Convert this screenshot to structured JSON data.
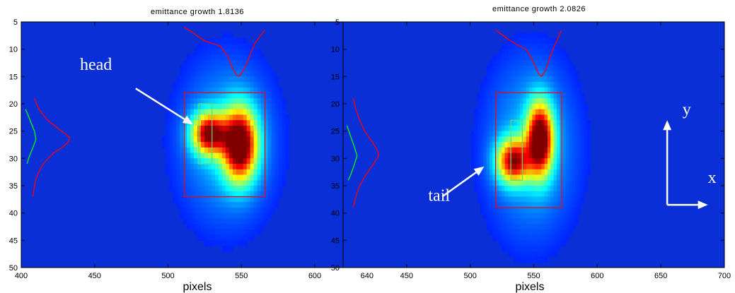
{
  "chart_data": [
    {
      "type": "heatmap",
      "title": "emittance growth 1.8136",
      "xlabel": "pixels",
      "ylabel": "",
      "xlim": [
        400,
        640
      ],
      "ylim": [
        50,
        5
      ],
      "xticks": [
        400,
        450,
        500,
        550,
        600,
        640
      ],
      "yticks": [
        5,
        10,
        15,
        20,
        25,
        30,
        35,
        40,
        45,
        50
      ],
      "colormap": "jet",
      "background_color": "#0a2fd6",
      "beam": {
        "main": {
          "x": 549,
          "y": 27.5,
          "sx": 8,
          "sy": 4.5,
          "amp": 1.0
        },
        "lobe": {
          "x": 528,
          "y": 25.5,
          "sx": 8,
          "sy": 2.6,
          "amp": 0.85
        },
        "halo": {
          "x": 540,
          "y": 27,
          "sx": 24,
          "sy": 11,
          "amp": 0.22
        }
      },
      "roi_box": {
        "x0": 511,
        "x1": 566,
        "y0": 18,
        "y1": 37,
        "color": "#ff0000"
      },
      "inner_box": {
        "x0": 521,
        "x1": 530,
        "y0": 20,
        "y1": 31,
        "color": "#66dd66"
      },
      "x_profile": {
        "color": "#ff0000",
        "x": [
          511,
          516,
          521,
          526,
          531,
          536,
          541,
          544,
          546,
          548,
          550,
          553,
          556,
          559,
          563,
          566
        ],
        "y": [
          6,
          6.8,
          7.8,
          8.6,
          9.0,
          9.5,
          11.5,
          13.5,
          14.5,
          15.0,
          14.5,
          13.0,
          11.0,
          9.0,
          7.5,
          6.5
        ]
      },
      "y_profiles": [
        {
          "color": "#ff0000",
          "y": [
            19,
            21,
            23,
            24.5,
            25.5,
            26.2,
            27,
            28,
            29,
            31,
            33,
            35,
            37
          ],
          "x": [
            409,
            412,
            418,
            425,
            430,
            433,
            432,
            428,
            422,
            415,
            411,
            409,
            408
          ]
        },
        {
          "color": "#00ff00",
          "y": [
            21,
            23,
            25,
            26.5,
            28,
            30,
            31
          ],
          "x": [
            403,
            406,
            409,
            410,
            408,
            405,
            404
          ]
        }
      ],
      "annotations": [
        {
          "text": "head",
          "tx": 440,
          "ty": 13.8,
          "ax1": 478,
          "ay1": 17.2,
          "ax2": 517,
          "ay2": 23.8
        }
      ]
    },
    {
      "type": "heatmap",
      "title": "emittance growth 2.0826",
      "xlabel": "pixels",
      "ylabel": "",
      "xlim": [
        400,
        700
      ],
      "ylim": [
        50,
        5
      ],
      "xticks": [
        450,
        500,
        550,
        600,
        650,
        700
      ],
      "yticks": [
        5,
        10,
        15,
        20,
        25,
        30,
        35,
        40,
        45,
        50
      ],
      "colormap": "jet",
      "background_color": "#0a2fd6",
      "beam": {
        "main": {
          "x": 555,
          "y": 26.5,
          "sx": 7,
          "sy": 4.5,
          "amp": 1.0
        },
        "lobe": {
          "x": 534,
          "y": 30.5,
          "sx": 9,
          "sy": 2.8,
          "amp": 0.8
        },
        "halo": {
          "x": 548,
          "y": 28,
          "sx": 26,
          "sy": 12,
          "amp": 0.22
        }
      },
      "roi_box": {
        "x0": 520,
        "x1": 572,
        "y0": 18,
        "y1": 39,
        "color": "#ff0000"
      },
      "inner_box": {
        "x0": 532,
        "x1": 541,
        "y0": 23,
        "y1": 34,
        "color": "#66dd66"
      },
      "x_profile": {
        "color": "#ff0000",
        "x": [
          520,
          526,
          532,
          538,
          544,
          548,
          551,
          554,
          556,
          559,
          562,
          566,
          572
        ],
        "y": [
          6.5,
          7.5,
          8.5,
          9.3,
          10,
          11.5,
          13,
          14.6,
          15,
          14,
          12,
          9.5,
          6.5
        ]
      },
      "y_profiles": [
        {
          "color": "#ff0000",
          "y": [
            19,
            21,
            23,
            25,
            27,
            28.5,
            29.5,
            31,
            33,
            35,
            37,
            39
          ],
          "x": [
            408,
            410,
            413,
            417,
            423,
            427,
            428,
            424,
            418,
            413,
            410,
            408
          ]
        },
        {
          "color": "#00ff00",
          "y": [
            24,
            26,
            28,
            29.5,
            31,
            33,
            34
          ],
          "x": [
            403,
            406,
            409,
            411,
            409,
            406,
            404
          ]
        }
      ],
      "annotations": [
        {
          "text": "tail",
          "tx": 467,
          "ty": 37.8,
          "ax1": 478,
          "ay1": 37,
          "ax2": 511,
          "ay2": 31.5
        },
        {
          "text": "y",
          "tx": 667,
          "ty": 22,
          "ax1": 0,
          "ay1": 0,
          "ax2": 0,
          "ay2": 0
        },
        {
          "text": "x",
          "tx": 687,
          "ty": 34.5,
          "ax1": 0,
          "ay1": 0,
          "ax2": 0,
          "ay2": 0
        }
      ],
      "axes_glyph": {
        "origin_x": 655,
        "origin_y": 38.5,
        "y_end": 23,
        "x_end": 687
      }
    }
  ]
}
